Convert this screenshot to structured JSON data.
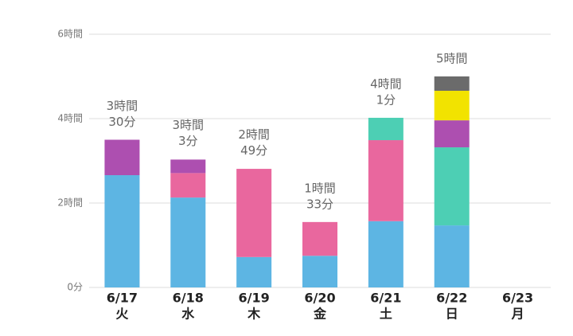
{
  "chart_data": {
    "type": "stacked-bar",
    "categories": [
      "6/17",
      "6/18",
      "6/19",
      "6/20",
      "6/21",
      "6/22",
      "6/23"
    ],
    "weekdays": [
      "火",
      "水",
      "木",
      "金",
      "土",
      "日",
      "月"
    ],
    "series": [
      {
        "color": "#5db5e3",
        "values": [
          2.66,
          2.13,
          0.72,
          0.75,
          1.57,
          1.47,
          null
        ]
      },
      {
        "color": "#e9679e",
        "values": [
          null,
          0.58,
          2.09,
          0.8,
          1.92,
          null,
          null
        ]
      },
      {
        "color": "#4dcfb4",
        "values": [
          null,
          null,
          null,
          null,
          0.53,
          1.85,
          null
        ]
      },
      {
        "color": "#ad4fb0",
        "values": [
          0.84,
          0.32,
          null,
          null,
          null,
          0.64,
          null
        ]
      },
      {
        "color": "#f2e300",
        "values": [
          null,
          null,
          null,
          null,
          null,
          0.7,
          null
        ]
      },
      {
        "color": "#6b6b6b",
        "values": [
          null,
          null,
          null,
          null,
          null,
          0.34,
          null
        ]
      }
    ],
    "totals": [
      3.5,
      3.05,
      2.817,
      1.55,
      4.017,
      5,
      null
    ],
    "total_labels": [
      [
        "3時間",
        "30分"
      ],
      [
        "3時間",
        "3分"
      ],
      [
        "2時間",
        "49分"
      ],
      [
        "1時間",
        "33分"
      ],
      [
        "4時間",
        "1分"
      ],
      [
        "5時間"
      ],
      null
    ],
    "ylim": [
      0,
      6
    ],
    "yticks": [
      {
        "value": 0,
        "label": "0分"
      },
      {
        "value": 2,
        "label": "2時間"
      },
      {
        "value": 4,
        "label": "4時間"
      },
      {
        "value": 6,
        "label": "6時間"
      }
    ],
    "grid": true
  }
}
